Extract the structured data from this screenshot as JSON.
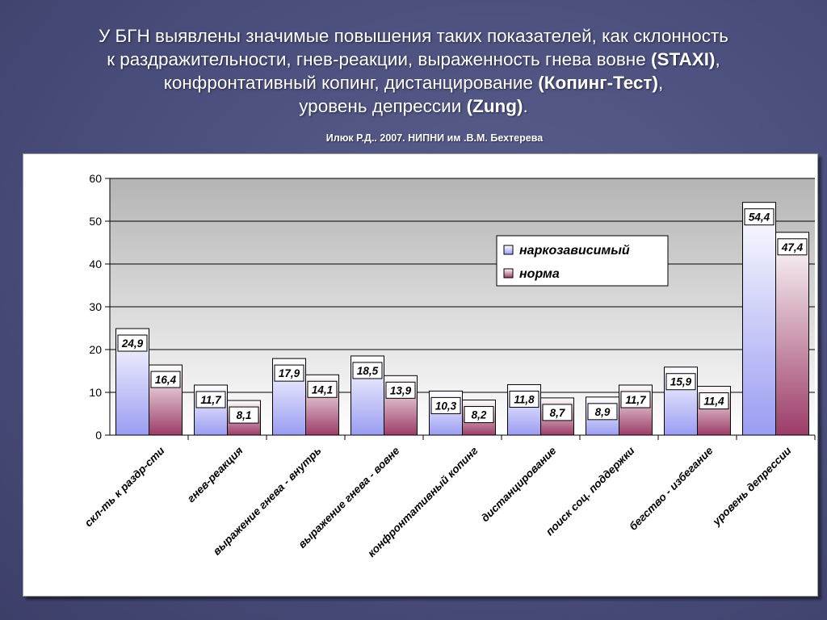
{
  "slide": {
    "title_lines": [
      {
        "before": "У БГН выявлены значимые повышения таких показателей, как склонность",
        "bold": "",
        "after": ""
      },
      {
        "before": "к раздражительности, гнев-реакции, выраженность гнева вовне  ",
        "bold": "(STAXI)",
        "after": ","
      },
      {
        "before": "конфронтативный копинг, дистанцирование ",
        "bold": "(Копинг-Тест)",
        "after": ","
      },
      {
        "before": "уровень депрессии ",
        "bold": "(Zung)",
        "after": "."
      }
    ],
    "source": "Илюк Р.Д.. 2007. НИПНИ им .В.М. Бехтерева"
  },
  "chart_data": {
    "type": "bar",
    "categories": [
      "скл-ть к раздр-сти",
      "гнев-реакция",
      "выражение гнева - внутрь",
      "выражение гнева - вовне",
      "конфронтативный копинг",
      "дистанцирование",
      "поиск соц. поддержки",
      "бегство - избегание",
      "уровень депрессии"
    ],
    "series": [
      {
        "name": "наркозависимый",
        "values": [
          24.9,
          11.7,
          17.9,
          18.5,
          10.3,
          11.8,
          8.9,
          15.9,
          54.4
        ],
        "labels": [
          "24,9",
          "11,7",
          "17,9",
          "18,5",
          "10,3",
          "11,8",
          "8,9",
          "15,9",
          "54,4"
        ],
        "color_top": "#ffffff",
        "color_bottom": "#9a9cf2"
      },
      {
        "name": "норма",
        "values": [
          16.4,
          8.1,
          14.1,
          13.9,
          8.2,
          8.7,
          11.7,
          11.4,
          47.4
        ],
        "labels": [
          "16,4",
          "8,1",
          "14,1",
          "13,9",
          "8,2",
          "8,7",
          "11,7",
          "11,4",
          "47,4"
        ],
        "color_top": "#ffffff",
        "color_bottom": "#9c3c68"
      }
    ],
    "ylim": [
      0,
      60
    ],
    "yticks": [
      0,
      10,
      20,
      30,
      40,
      50,
      60
    ],
    "grid": true,
    "legend_position": "top-right"
  }
}
